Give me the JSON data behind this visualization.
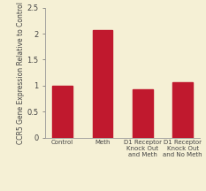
{
  "categories": [
    "Control",
    "Meth",
    "D1 Receptor\nKnock Out\nand Meth",
    "D1 Receptor\nKnock Out\nand No Meth"
  ],
  "values": [
    1.0,
    2.07,
    0.92,
    1.07
  ],
  "bar_color": "#c0192e",
  "background_color": "#f5f0d5",
  "ylabel": "CCR5 Gene Expression Relative to Control",
  "ylim": [
    0,
    2.5
  ],
  "yticks": [
    0,
    0.5,
    1.0,
    1.5,
    2.0,
    2.5
  ],
  "ytick_labels": [
    "0",
    "0.5",
    "1",
    "1.5",
    "2",
    "2.5"
  ],
  "bar_width": 0.5,
  "ylabel_fontsize": 5.5,
  "ytick_fontsize": 6.0,
  "xtick_fontsize": 5.0,
  "spine_color": "#999999"
}
